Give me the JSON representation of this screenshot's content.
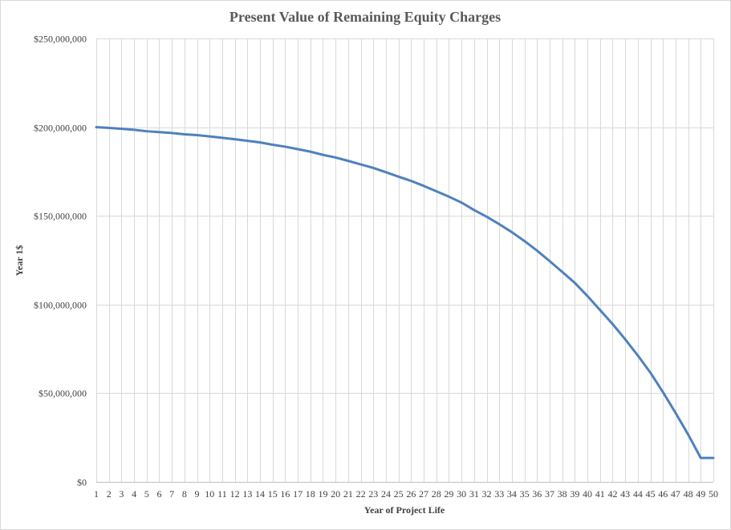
{
  "chart_data": {
    "type": "line",
    "title": "Present Value of  Remaining Equity Charges",
    "xlabel": "Year of Project Life",
    "ylabel": "Year 1$",
    "ylim": [
      0,
      250000000
    ],
    "yticks": [
      0,
      50000000,
      100000000,
      150000000,
      200000000,
      250000000
    ],
    "ytick_labels": [
      "$0",
      "$50,000,000",
      "$100,000,000",
      "$150,000,000",
      "$200,000,000",
      "$250,000,000"
    ],
    "x": [
      1,
      2,
      3,
      4,
      5,
      6,
      7,
      8,
      9,
      10,
      11,
      12,
      13,
      14,
      15,
      16,
      17,
      18,
      19,
      20,
      21,
      22,
      23,
      24,
      25,
      26,
      27,
      28,
      29,
      30,
      31,
      32,
      33,
      34,
      35,
      36,
      37,
      38,
      39,
      40,
      41,
      42,
      43,
      44,
      45,
      46,
      47,
      48,
      49,
      50
    ],
    "grid": true,
    "series": [
      {
        "color": "#4f81bd",
        "values": [
          200000000,
          199600000,
          199100000,
          198500000,
          197700000,
          197200000,
          196700000,
          196000000,
          195500000,
          194800000,
          194000000,
          193200000,
          192300000,
          191400000,
          190100000,
          189000000,
          187600000,
          186200000,
          184400000,
          182900000,
          181000000,
          179000000,
          177000000,
          174600000,
          172100000,
          169700000,
          166900000,
          163900000,
          160800000,
          157500000,
          153300000,
          149500000,
          145300000,
          140800000,
          135800000,
          130400000,
          124500000,
          118400000,
          112200000,
          104800000,
          96900000,
          89000000,
          80400000,
          71300000,
          61600000,
          50600000,
          38900000,
          26700000,
          13500000,
          13500000
        ]
      }
    ]
  }
}
